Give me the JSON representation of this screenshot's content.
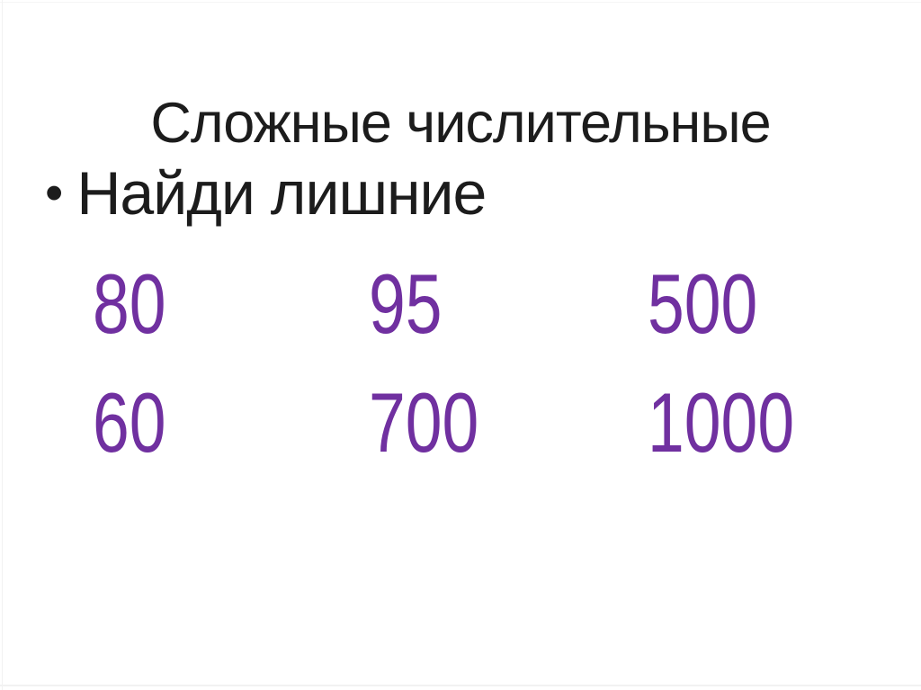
{
  "slide": {
    "title": "Сложные числительные",
    "bullet": {
      "marker": "•",
      "text": "Найди лишние"
    },
    "numbers": {
      "rows": [
        {
          "cells": [
            "80",
            "95",
            "500"
          ]
        },
        {
          "cells": [
            "60",
            "700",
            "1000"
          ]
        }
      ]
    },
    "colors": {
      "number_text": "#7030A0",
      "body_text": "#1C1C1C"
    }
  }
}
